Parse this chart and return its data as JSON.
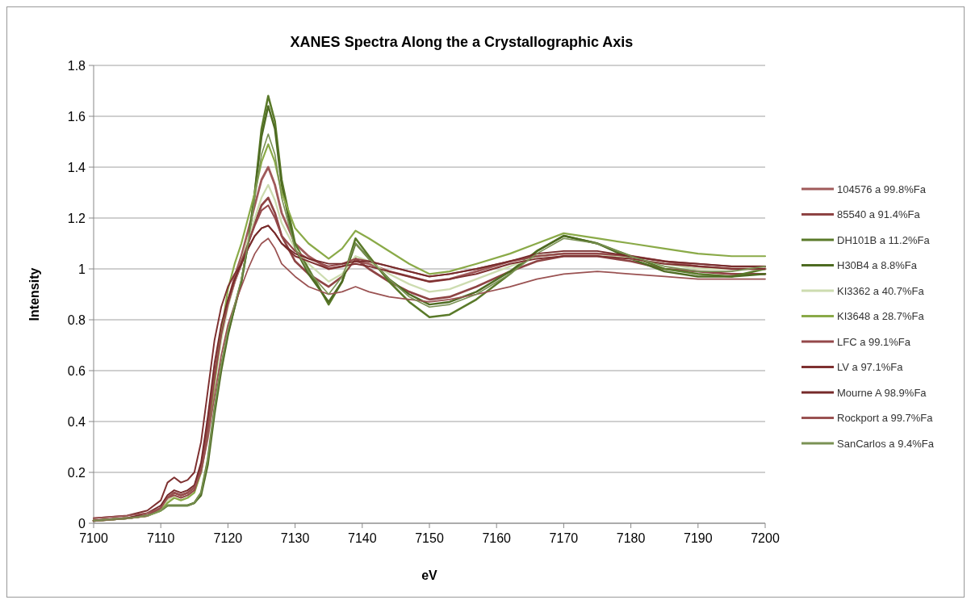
{
  "chart_data": {
    "type": "line",
    "title": "XANES Spectra Along the a Crystallographic Axis",
    "xlabel": "eV",
    "ylabel": "Intensity",
    "x": [
      7100,
      7105,
      7108,
      7110,
      7111,
      7112,
      7113,
      7114,
      7115,
      7116,
      7117,
      7118,
      7119,
      7120,
      7121,
      7122,
      7123,
      7124,
      7125,
      7126,
      7127,
      7128,
      7130,
      7132,
      7135,
      7137,
      7139,
      7141,
      7144,
      7147,
      7150,
      7153,
      7157,
      7162,
      7166,
      7170,
      7175,
      7180,
      7185,
      7190,
      7195,
      7200
    ],
    "xlim": [
      7100,
      7200
    ],
    "xticks": [
      7100,
      7110,
      7120,
      7130,
      7140,
      7150,
      7160,
      7170,
      7180,
      7190,
      7200
    ],
    "ylim": [
      0,
      1.8
    ],
    "yticks": [
      {
        "value": 0,
        "label": "0"
      },
      {
        "value": 0.2,
        "label": "0.2"
      },
      {
        "value": 0.4,
        "label": "0.4"
      },
      {
        "value": 0.6,
        "label": "0.6"
      },
      {
        "value": 0.8,
        "label": "0.8"
      },
      {
        "value": 1,
        "label": "1"
      },
      {
        "value": 1.2,
        "label": "1.2"
      },
      {
        "value": 1.4,
        "label": "1.4"
      },
      {
        "value": 1.6,
        "label": "1.6"
      },
      {
        "value": 1.8,
        "label": "1.8"
      }
    ],
    "grid": "y",
    "legend": "right",
    "marker": "none",
    "line_style": "solid",
    "series": [
      {
        "name": "104576 a 99.8%Fa",
        "color": "#a05a5a",
        "values": [
          0.01,
          0.02,
          0.03,
          0.06,
          0.1,
          0.12,
          0.11,
          0.12,
          0.14,
          0.22,
          0.38,
          0.58,
          0.75,
          0.87,
          0.97,
          1.05,
          1.15,
          1.25,
          1.35,
          1.4,
          1.33,
          1.22,
          1.1,
          1.05,
          1.0,
          1.01,
          1.03,
          1.02,
          0.99,
          0.97,
          0.95,
          0.96,
          0.99,
          1.03,
          1.05,
          1.06,
          1.06,
          1.05,
          1.03,
          1.01,
          1.0,
          1.0
        ]
      },
      {
        "name": "85540 a 91.4%Fa",
        "color": "#8e4444",
        "values": [
          0.01,
          0.02,
          0.03,
          0.06,
          0.1,
          0.12,
          0.11,
          0.12,
          0.14,
          0.22,
          0.38,
          0.58,
          0.75,
          0.86,
          0.95,
          1.02,
          1.1,
          1.18,
          1.25,
          1.28,
          1.22,
          1.13,
          1.03,
          0.98,
          0.93,
          0.97,
          1.04,
          1.0,
          0.95,
          0.91,
          0.88,
          0.89,
          0.93,
          0.99,
          1.03,
          1.05,
          1.05,
          1.03,
          1.0,
          0.99,
          0.98,
          0.98
        ]
      },
      {
        "name": "DH101B a 11.2%Fa",
        "color": "#5a7a2a",
        "values": [
          0.01,
          0.02,
          0.03,
          0.05,
          0.07,
          0.07,
          0.07,
          0.07,
          0.08,
          0.12,
          0.25,
          0.45,
          0.62,
          0.75,
          0.85,
          0.95,
          1.1,
          1.3,
          1.55,
          1.68,
          1.58,
          1.35,
          1.1,
          1.0,
          0.86,
          0.95,
          1.12,
          1.05,
          0.95,
          0.87,
          0.81,
          0.82,
          0.88,
          0.98,
          1.07,
          1.13,
          1.1,
          1.05,
          1.0,
          0.98,
          0.97,
          1.0
        ]
      },
      {
        "name": "H30B4 a 8.8%Fa",
        "color": "#4e6b22",
        "values": [
          0.01,
          0.02,
          0.03,
          0.05,
          0.07,
          0.07,
          0.07,
          0.07,
          0.08,
          0.11,
          0.23,
          0.43,
          0.6,
          0.74,
          0.85,
          0.95,
          1.1,
          1.3,
          1.52,
          1.64,
          1.55,
          1.33,
          1.08,
          0.98,
          0.87,
          0.95,
          1.1,
          1.04,
          0.96,
          0.9,
          0.86,
          0.87,
          0.91,
          0.99,
          1.07,
          1.13,
          1.1,
          1.04,
          0.99,
          0.97,
          0.97,
          0.98
        ]
      },
      {
        "name": "KI3362 a 40.7%Fa",
        "color": "#cddcb0",
        "values": [
          0.01,
          0.02,
          0.03,
          0.05,
          0.09,
          0.11,
          0.1,
          0.11,
          0.13,
          0.2,
          0.35,
          0.55,
          0.72,
          0.85,
          0.95,
          1.03,
          1.12,
          1.2,
          1.28,
          1.33,
          1.27,
          1.18,
          1.08,
          1.02,
          0.95,
          0.98,
          1.05,
          1.03,
          0.98,
          0.94,
          0.91,
          0.92,
          0.96,
          1.01,
          1.05,
          1.06,
          1.06,
          1.04,
          1.02,
          1.0,
          1.0,
          1.0
        ]
      },
      {
        "name": "KI3648 a 28.7%Fa",
        "color": "#8aaa48",
        "values": [
          0.01,
          0.02,
          0.03,
          0.05,
          0.08,
          0.1,
          0.09,
          0.1,
          0.12,
          0.2,
          0.35,
          0.55,
          0.75,
          0.92,
          1.02,
          1.1,
          1.2,
          1.3,
          1.42,
          1.49,
          1.42,
          1.3,
          1.16,
          1.1,
          1.04,
          1.08,
          1.15,
          1.12,
          1.07,
          1.02,
          0.98,
          0.99,
          1.02,
          1.06,
          1.1,
          1.14,
          1.12,
          1.1,
          1.08,
          1.06,
          1.05,
          1.05
        ]
      },
      {
        "name": "LFC a 99.1%Fa",
        "color": "#94484a",
        "values": [
          0.01,
          0.02,
          0.03,
          0.06,
          0.1,
          0.11,
          0.1,
          0.11,
          0.13,
          0.21,
          0.37,
          0.57,
          0.74,
          0.86,
          0.95,
          1.03,
          1.1,
          1.17,
          1.23,
          1.25,
          1.2,
          1.13,
          1.07,
          1.04,
          1.01,
          1.02,
          1.04,
          1.03,
          1.01,
          0.99,
          0.97,
          0.98,
          1.0,
          1.03,
          1.05,
          1.06,
          1.06,
          1.05,
          1.03,
          1.02,
          1.01,
          1.01
        ]
      },
      {
        "name": "LV a 97.1%Fa",
        "color": "#7e3030",
        "values": [
          0.02,
          0.03,
          0.05,
          0.09,
          0.16,
          0.18,
          0.16,
          0.17,
          0.2,
          0.32,
          0.52,
          0.72,
          0.85,
          0.93,
          0.98,
          1.02,
          1.08,
          1.13,
          1.16,
          1.17,
          1.14,
          1.1,
          1.05,
          1.03,
          1.0,
          1.01,
          1.02,
          1.01,
          0.99,
          0.97,
          0.95,
          0.96,
          0.98,
          1.02,
          1.04,
          1.05,
          1.05,
          1.04,
          1.02,
          1.01,
          1.0,
          1.0
        ]
      },
      {
        "name": "Mourne A 98.9%Fa",
        "color": "#762a2a",
        "values": [
          0.01,
          0.02,
          0.04,
          0.07,
          0.11,
          0.13,
          0.12,
          0.13,
          0.15,
          0.24,
          0.42,
          0.63,
          0.78,
          0.88,
          0.96,
          1.02,
          1.08,
          1.13,
          1.16,
          1.17,
          1.14,
          1.1,
          1.06,
          1.04,
          1.02,
          1.02,
          1.03,
          1.03,
          1.01,
          0.99,
          0.97,
          0.98,
          1.0,
          1.03,
          1.06,
          1.07,
          1.07,
          1.05,
          1.03,
          1.02,
          1.01,
          1.01
        ]
      },
      {
        "name": "Rockport a 99.7%Fa",
        "color": "#9a5252",
        "values": [
          0.02,
          0.03,
          0.04,
          0.06,
          0.1,
          0.12,
          0.11,
          0.12,
          0.14,
          0.2,
          0.33,
          0.5,
          0.66,
          0.78,
          0.86,
          0.93,
          1.0,
          1.06,
          1.1,
          1.12,
          1.08,
          1.02,
          0.97,
          0.93,
          0.9,
          0.91,
          0.93,
          0.91,
          0.89,
          0.88,
          0.87,
          0.88,
          0.9,
          0.93,
          0.96,
          0.98,
          0.99,
          0.98,
          0.97,
          0.96,
          0.96,
          0.96
        ]
      },
      {
        "name": "SanCarlos a 9.4%Fa",
        "color": "#7a9254",
        "values": [
          0.01,
          0.02,
          0.03,
          0.05,
          0.07,
          0.07,
          0.07,
          0.07,
          0.08,
          0.12,
          0.25,
          0.45,
          0.62,
          0.76,
          0.86,
          0.96,
          1.1,
          1.28,
          1.45,
          1.53,
          1.45,
          1.28,
          1.08,
          0.99,
          0.9,
          0.97,
          1.1,
          1.04,
          0.96,
          0.89,
          0.85,
          0.86,
          0.9,
          0.98,
          1.06,
          1.12,
          1.1,
          1.05,
          1.01,
          0.99,
          0.99,
          1.01
        ]
      }
    ]
  }
}
